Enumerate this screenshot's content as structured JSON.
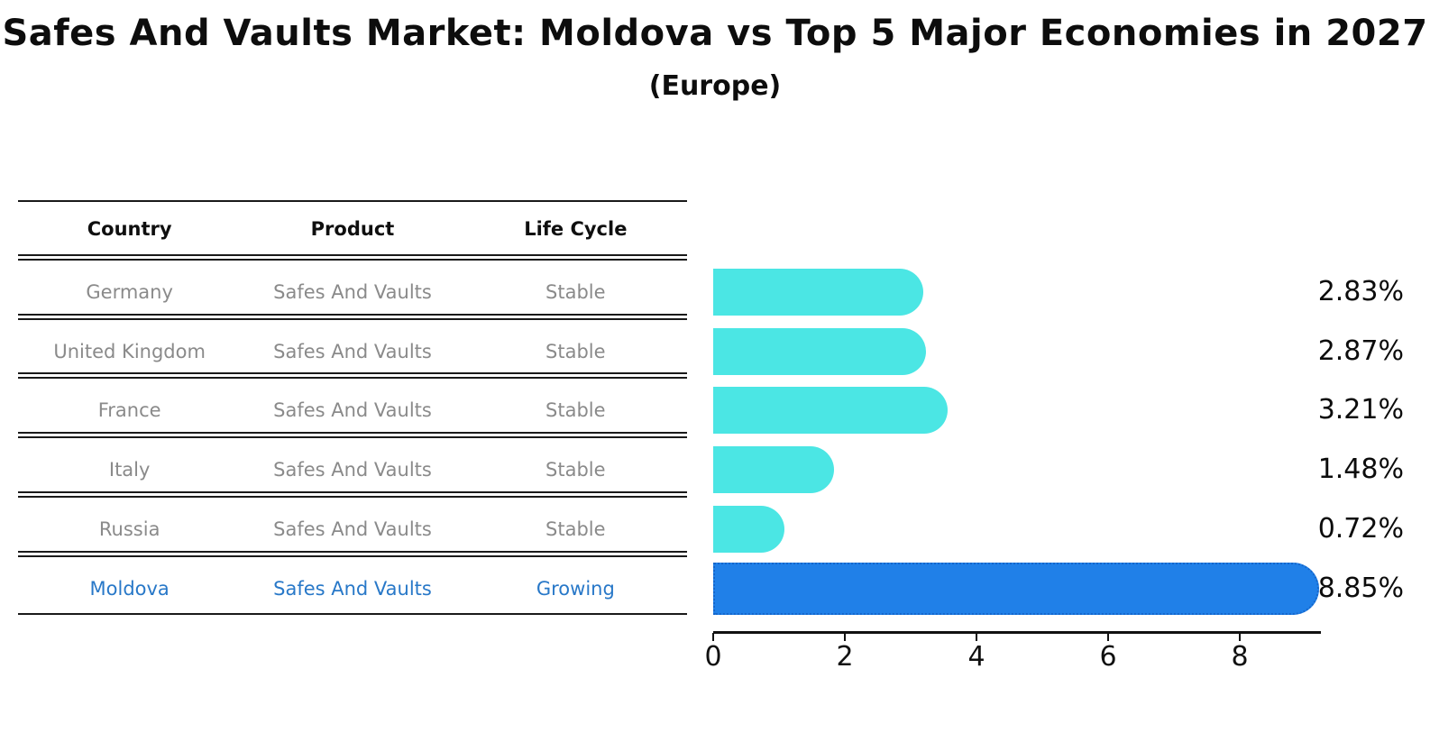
{
  "title": "Safes And Vaults Market: Moldova vs Top 5 Major Economies in 2027",
  "subtitle": "(Europe)",
  "table": {
    "columns": [
      "Country",
      "Product",
      "Life Cycle"
    ],
    "rows": [
      {
        "country": "Germany",
        "product": "Safes And Vaults",
        "life_cycle": "Stable",
        "highlighted": false
      },
      {
        "country": "United Kingdom",
        "product": "Safes And Vaults",
        "life_cycle": "Stable",
        "highlighted": false
      },
      {
        "country": "France",
        "product": "Safes And Vaults",
        "life_cycle": "Stable",
        "highlighted": false
      },
      {
        "country": "Italy",
        "product": "Safes And Vaults",
        "life_cycle": "Stable",
        "highlighted": false
      },
      {
        "country": "Russia",
        "product": "Safes And Vaults",
        "life_cycle": "Stable",
        "highlighted": false
      },
      {
        "country": "Moldova",
        "product": "Safes And Vaults",
        "life_cycle": "Growing",
        "highlighted": true
      }
    ]
  },
  "chart_data": {
    "type": "bar",
    "orientation": "horizontal",
    "title": "Safes And Vaults Market: Moldova vs Top 5 Major Economies in 2027 (Europe)",
    "categories": [
      "Germany",
      "United Kingdom",
      "France",
      "Italy",
      "Russia",
      "Moldova"
    ],
    "values": [
      2.83,
      2.87,
      3.21,
      1.48,
      0.72,
      8.85
    ],
    "value_labels": [
      "2.83%",
      "2.87%",
      "3.21%",
      "1.48%",
      "0.72%",
      "8.85%"
    ],
    "highlight_index": 5,
    "xlabel": "",
    "ylabel": "",
    "x_ticks": [
      0,
      2,
      4,
      6,
      8
    ],
    "xlim": [
      0,
      9.25
    ],
    "grid": false,
    "legend_position": "none",
    "bar_color": "#4BE6E4",
    "highlight_bar_color": "#2080E8",
    "highlight_border_color": "#1566CB"
  },
  "colors": {
    "background": "#ffffff",
    "text_dark": "#0d0d0d",
    "text_muted": "#8a8a8a",
    "text_highlight": "#2878c8",
    "table_line": "#1a1a1a"
  }
}
